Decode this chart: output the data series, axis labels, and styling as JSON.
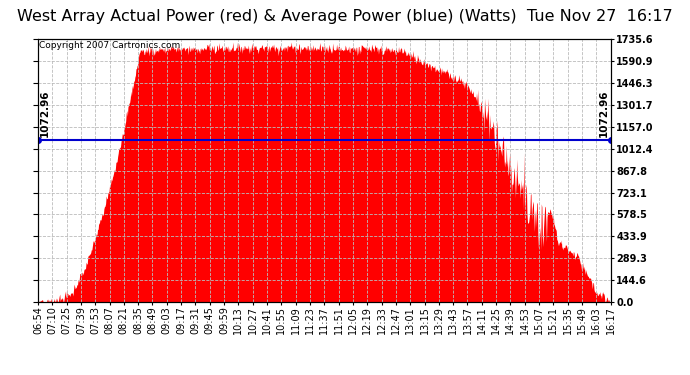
{
  "title": "West Array Actual Power (red) & Average Power (blue) (Watts)  Tue Nov 27  16:17",
  "copyright": "Copyright 2007 Cartronics.com",
  "avg_power": 1072.96,
  "y_max": 1735.6,
  "y_min": 0.0,
  "ytick_values": [
    0.0,
    144.6,
    289.3,
    433.9,
    578.5,
    723.1,
    867.8,
    1012.4,
    1157.0,
    1301.7,
    1446.3,
    1590.9,
    1735.6
  ],
  "fill_color": "#ff0000",
  "line_color": "#0000cd",
  "background_color": "#ffffff",
  "grid_color": "#bbbbbb",
  "title_fontsize": 11.5,
  "copyright_fontsize": 6.5,
  "avg_label_fontsize": 7.5,
  "tick_fontsize": 7,
  "xtick_labels": [
    "06:54",
    "07:10",
    "07:25",
    "07:39",
    "07:53",
    "08:07",
    "08:21",
    "08:35",
    "08:49",
    "09:03",
    "09:17",
    "09:31",
    "09:45",
    "09:59",
    "10:13",
    "10:27",
    "10:41",
    "10:55",
    "11:09",
    "11:23",
    "11:37",
    "11:51",
    "12:05",
    "12:19",
    "12:33",
    "12:47",
    "13:01",
    "13:15",
    "13:29",
    "13:43",
    "13:57",
    "14:11",
    "14:25",
    "14:39",
    "14:53",
    "15:07",
    "15:21",
    "15:35",
    "15:49",
    "16:03",
    "16:17"
  ]
}
